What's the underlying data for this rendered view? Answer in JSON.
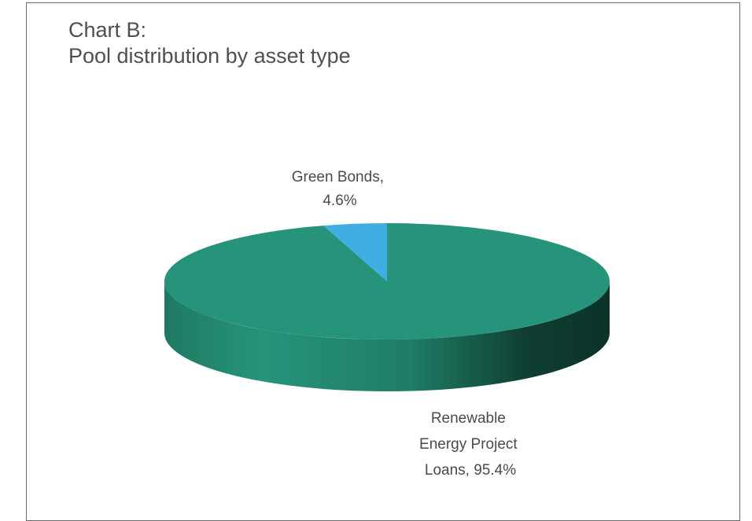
{
  "chart_data": {
    "type": "pie",
    "title_line1": "Chart B:",
    "title_line2": "Pool distribution by asset type",
    "slices": [
      {
        "name": "Renewable Energy Project Loans",
        "value": 95.4,
        "label_lines": [
          "Renewable",
          "Energy Project",
          "Loans, 95.4%"
        ],
        "color": "#26947a"
      },
      {
        "name": "Green Bonds",
        "value": 4.6,
        "label_lines": [
          "Green Bonds,",
          "4.6%"
        ],
        "color": "#3eaee3"
      }
    ],
    "style": "3d-pie",
    "legend": "none"
  }
}
